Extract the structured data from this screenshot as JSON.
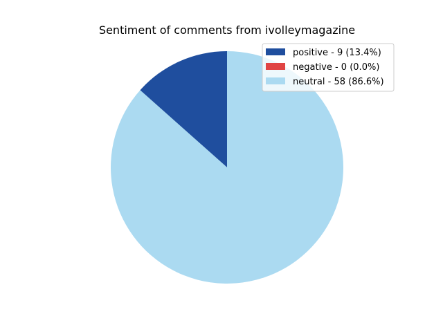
{
  "chart_data": {
    "type": "pie",
    "title": "Sentiment of comments from ivolleymagazine",
    "slices": [
      {
        "label": "positive - 9 (13.4%)",
        "value": 9,
        "color": "#1f4e9e"
      },
      {
        "label": "negative - 0 (0.0%)",
        "value": 0,
        "color": "#e04444"
      },
      {
        "label": "neutral - 58 (86.6%)",
        "value": 58,
        "color": "#abdaf1"
      }
    ],
    "start_angle_deg": 90,
    "direction": "counterclockwise",
    "legend_position": "upper-right"
  }
}
